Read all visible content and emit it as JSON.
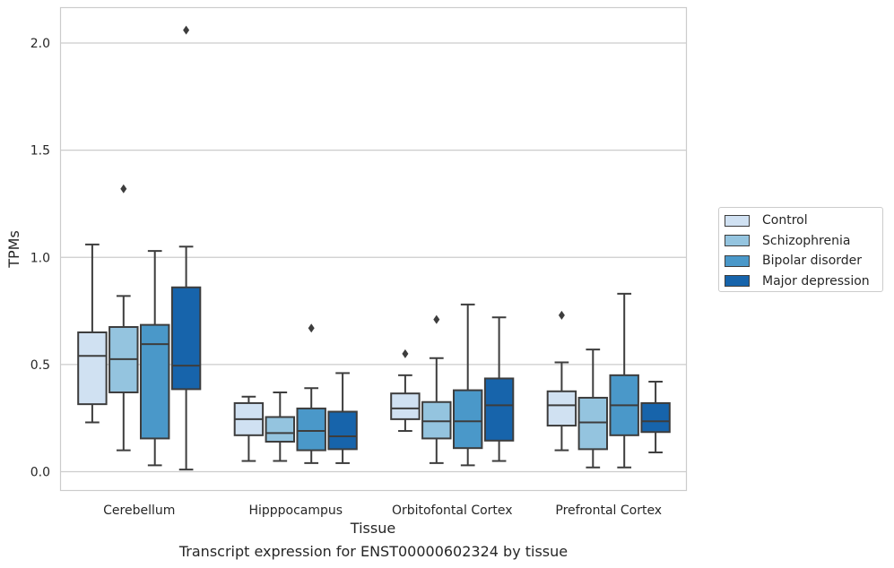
{
  "chart_data": {
    "type": "box",
    "xlabel": "Tissue",
    "ylabel": "TPMs",
    "caption": "Transcript expression for ENST00000602324 by tissue",
    "ylim": [
      -0.09,
      2.17
    ],
    "yticks": [
      0.0,
      0.5,
      1.0,
      1.5,
      2.0
    ],
    "ytick_labels": [
      "0.0",
      "0.5",
      "1.0",
      "1.5",
      "2.0"
    ],
    "grid": "horizontal",
    "legend_position": "right",
    "categories": [
      "Cerebellum",
      "Hipppocampus",
      "Orbitofontal Cortex",
      "Prefrontal Cortex"
    ],
    "series": [
      {
        "name": "Control",
        "color": "#d0e1f2",
        "boxes": [
          {
            "whislo": 0.23,
            "q1": 0.315,
            "med": 0.54,
            "q3": 0.65,
            "whishi": 1.06,
            "fliers": []
          },
          {
            "whislo": 0.05,
            "q1": 0.17,
            "med": 0.245,
            "q3": 0.32,
            "whishi": 0.35,
            "fliers": []
          },
          {
            "whislo": 0.19,
            "q1": 0.245,
            "med": 0.295,
            "q3": 0.365,
            "whishi": 0.45,
            "fliers": [
              0.55
            ]
          },
          {
            "whislo": 0.1,
            "q1": 0.215,
            "med": 0.31,
            "q3": 0.375,
            "whishi": 0.51,
            "fliers": [
              0.73
            ]
          }
        ]
      },
      {
        "name": "Schizophrenia",
        "color": "#94c4df",
        "boxes": [
          {
            "whislo": 0.1,
            "q1": 0.37,
            "med": 0.525,
            "q3": 0.675,
            "whishi": 0.82,
            "fliers": [
              1.32
            ]
          },
          {
            "whislo": 0.05,
            "q1": 0.14,
            "med": 0.18,
            "q3": 0.255,
            "whishi": 0.37,
            "fliers": []
          },
          {
            "whislo": 0.04,
            "q1": 0.155,
            "med": 0.235,
            "q3": 0.325,
            "whishi": 0.53,
            "fliers": [
              0.71
            ]
          },
          {
            "whislo": 0.02,
            "q1": 0.105,
            "med": 0.23,
            "q3": 0.345,
            "whishi": 0.57,
            "fliers": []
          }
        ]
      },
      {
        "name": "Bipolar disorder",
        "color": "#4a98c9",
        "boxes": [
          {
            "whislo": 0.03,
            "q1": 0.155,
            "med": 0.595,
            "q3": 0.685,
            "whishi": 1.03,
            "fliers": []
          },
          {
            "whislo": 0.04,
            "q1": 0.1,
            "med": 0.19,
            "q3": 0.295,
            "whishi": 0.39,
            "fliers": [
              0.67
            ]
          },
          {
            "whislo": 0.03,
            "q1": 0.11,
            "med": 0.235,
            "q3": 0.38,
            "whishi": 0.78,
            "fliers": []
          },
          {
            "whislo": 0.02,
            "q1": 0.17,
            "med": 0.31,
            "q3": 0.45,
            "whishi": 0.83,
            "fliers": []
          }
        ]
      },
      {
        "name": "Major depression",
        "color": "#1764ab",
        "boxes": [
          {
            "whislo": 0.01,
            "q1": 0.385,
            "med": 0.495,
            "q3": 0.86,
            "whishi": 1.05,
            "fliers": [
              2.06
            ]
          },
          {
            "whislo": 0.04,
            "q1": 0.105,
            "med": 0.165,
            "q3": 0.28,
            "whishi": 0.46,
            "fliers": []
          },
          {
            "whislo": 0.05,
            "q1": 0.145,
            "med": 0.31,
            "q3": 0.435,
            "whishi": 0.72,
            "fliers": []
          },
          {
            "whislo": 0.09,
            "q1": 0.185,
            "med": 0.235,
            "q3": 0.32,
            "whishi": 0.42,
            "fliers": []
          }
        ]
      }
    ]
  }
}
